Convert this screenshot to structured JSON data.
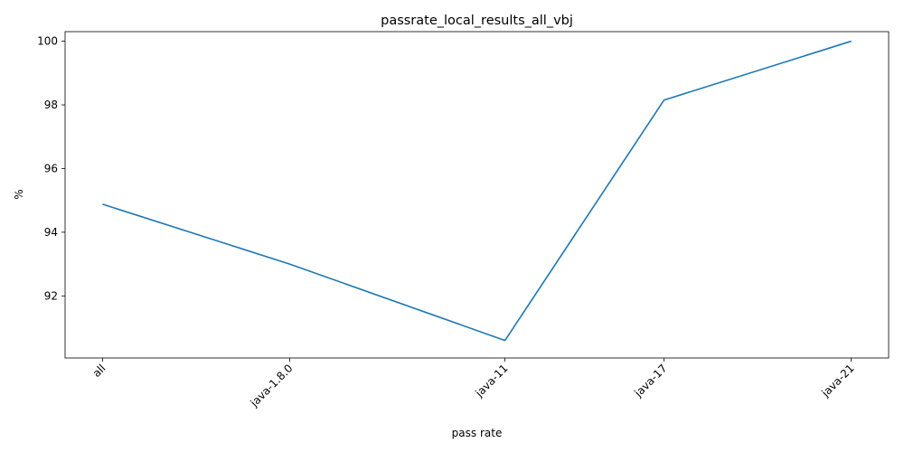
{
  "chart_data": {
    "type": "line",
    "title": "passrate_local_results_all_vbj",
    "xlabel": "pass rate",
    "ylabel": "%",
    "categories": [
      "all",
      "java-1.8.0",
      "java-11",
      "java-17",
      "java-21"
    ],
    "x_positions": [
      0,
      1,
      2.15,
      3,
      4
    ],
    "series": [
      {
        "values": [
          94.88,
          93.0,
          90.6,
          98.15,
          100.0
        ],
        "color": "#1f77b4"
      }
    ],
    "ylim": [
      90.05,
      100.3
    ],
    "xlim": [
      -0.2,
      4.2
    ],
    "yticks": [
      92,
      94,
      96,
      98,
      100
    ],
    "grid": false,
    "x_tick_rotation": 45
  }
}
